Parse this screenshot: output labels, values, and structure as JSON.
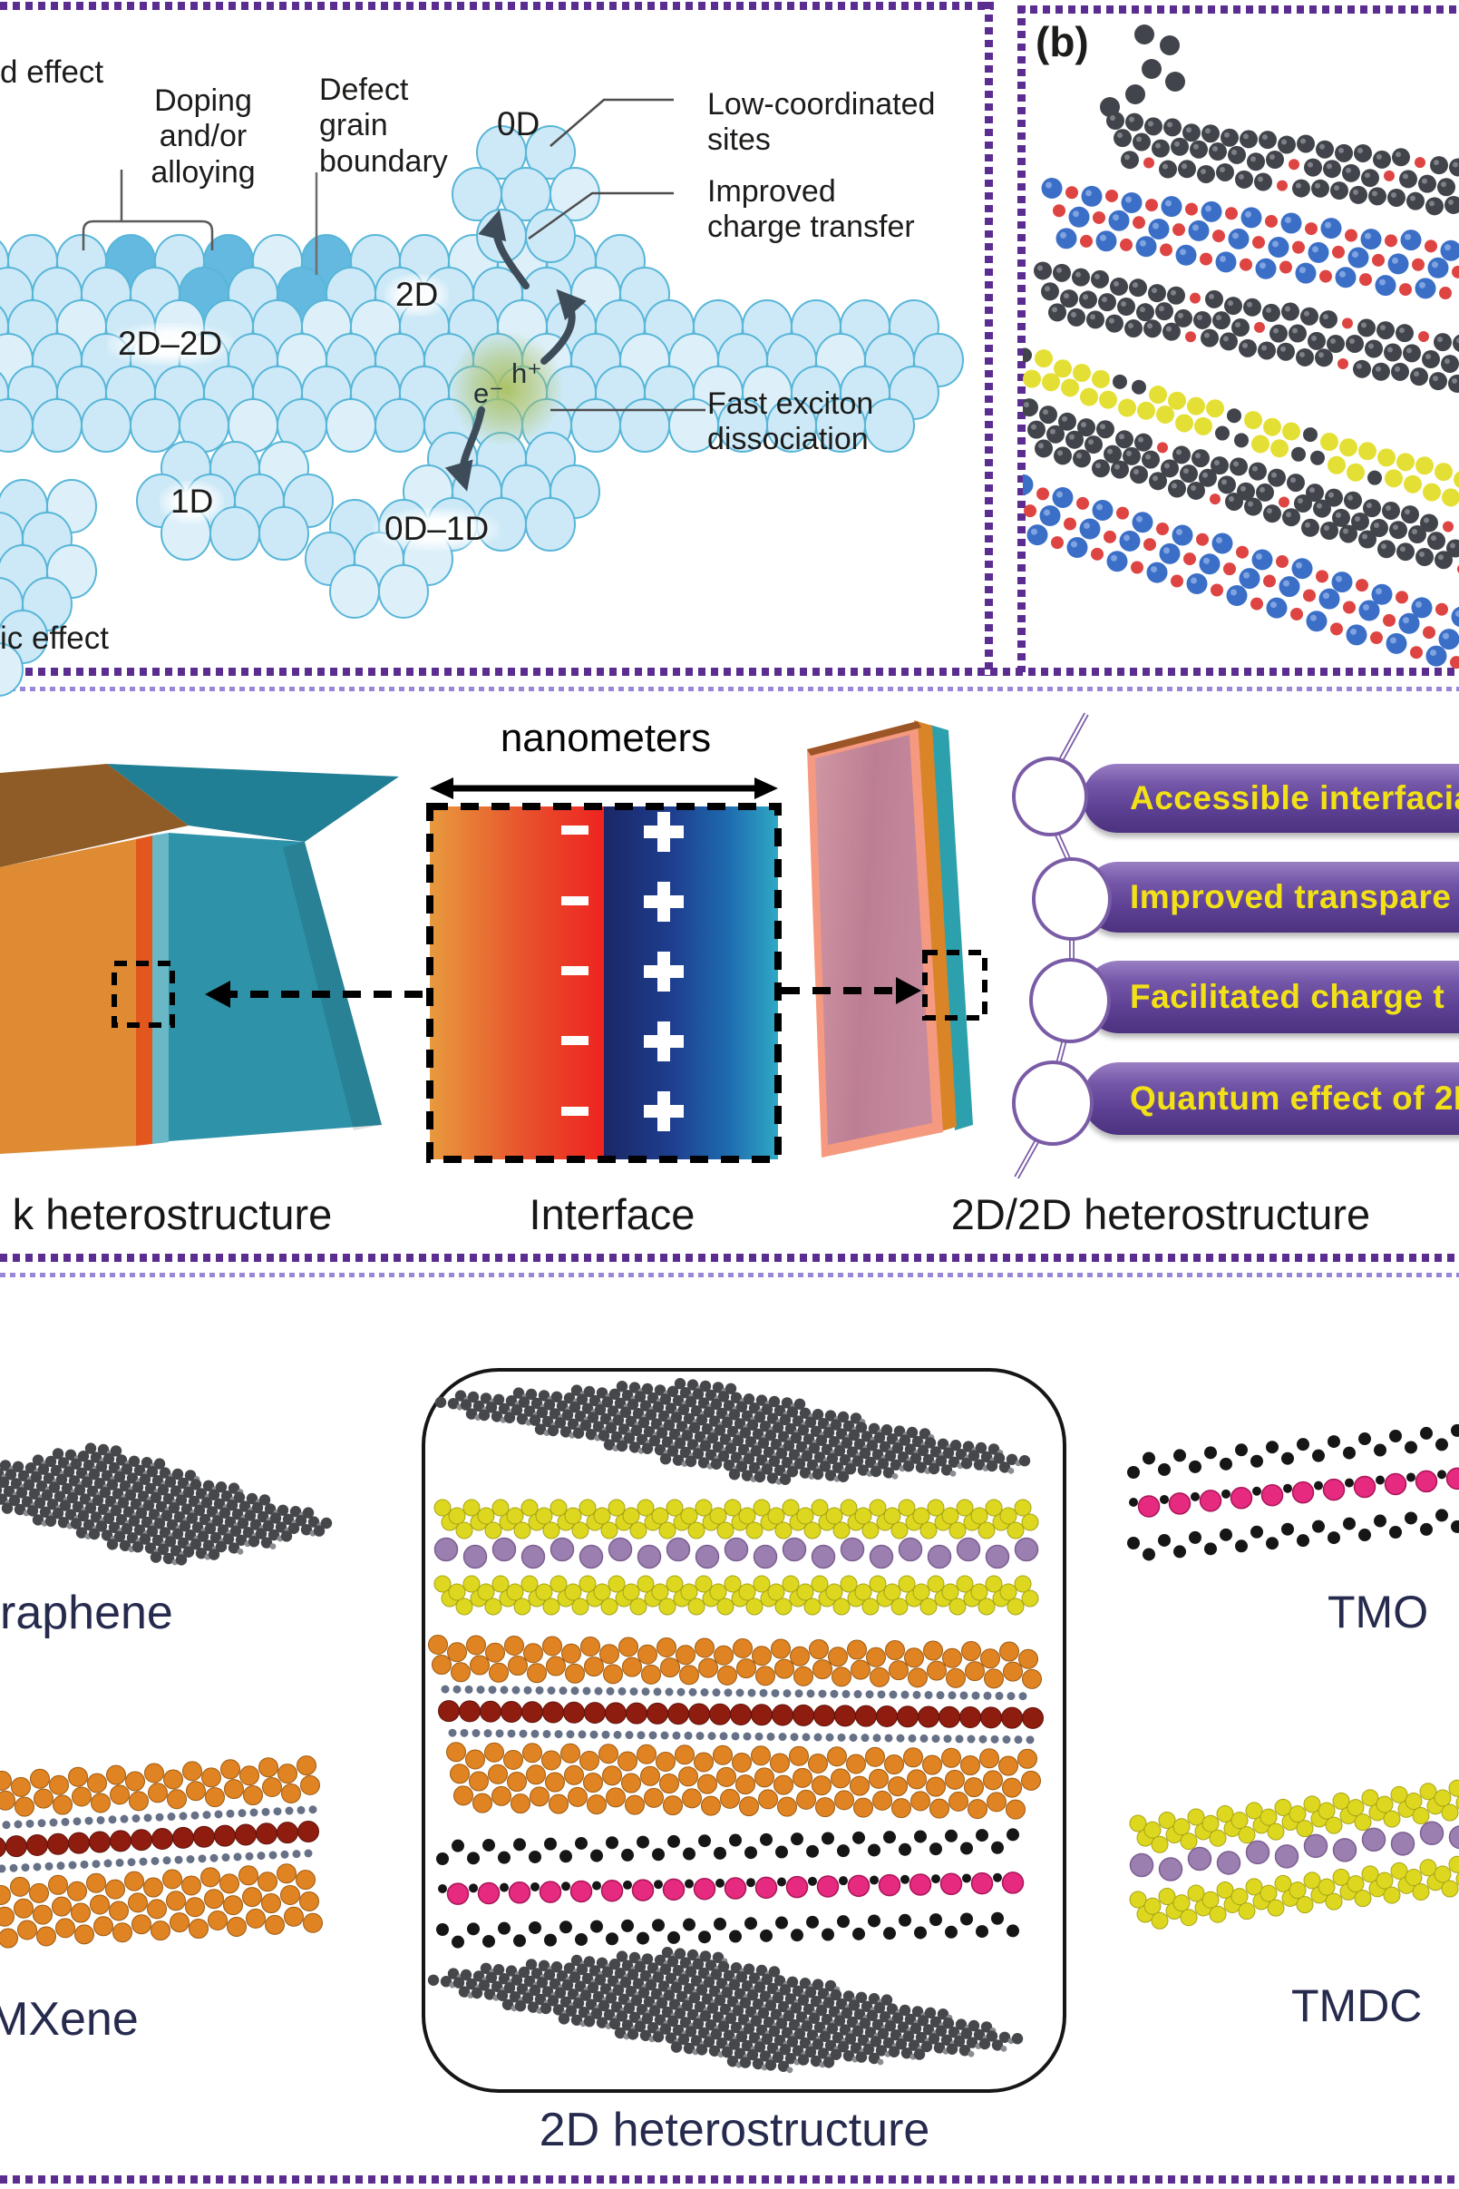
{
  "figure": {
    "panel_a": {
      "band_effect_label": "d effect",
      "doping_label": "Doping\nand/or\nalloying",
      "defect_label": "Defect\ngrain\nboundary",
      "cluster_0d_label": "0D",
      "low_coordinated_label": "Low-coordinated\nsites",
      "improved_charge_label": "Improved\ncharge transfer",
      "sheet_2d_label": "2D",
      "interface_2d2d_label": "2D–2D",
      "electron_label": "e⁻",
      "hole_label": "h⁺",
      "fast_exciton_label": "Fast exciton\ndissociation",
      "cluster_1d_label": "1D",
      "cluster_0d1d_label": "0D–1D",
      "synergistic_label": "ic effect"
    },
    "panel_b": {
      "tag": "(b)"
    },
    "interface_row": {
      "scale_label": "nanometers",
      "charge_negative": "-",
      "charge_positive": "+",
      "bulk_caption": "k heterostructure",
      "interface_caption": "Interface",
      "slab_caption": "2D/2D heterostructure",
      "benefits": [
        "Accessible interfacial",
        "Improved transpare",
        "Facilitated charge t",
        "Quantum effect of 2D"
      ]
    },
    "materials_row": {
      "graphene_label": "raphene",
      "mxene_label": "MXene",
      "heterostructure_label": "2D heterostructure",
      "tmo_label": "TMO",
      "tmdc_label": "TMDC"
    },
    "colors": {
      "border_purple": "#5c2d91",
      "border_lavender": "#9a86d6",
      "atom_fill": "#cde9f7",
      "atom_stroke": "#58b6d8",
      "atom_doped": "#64b9e0",
      "glow_green": "#a9bf5e",
      "arrow_dark": "#3e4c5a",
      "block_orange": "#de8b33",
      "block_brown": "#8f5c28",
      "block_teal": "#2e93a9",
      "block_teal_top": "#207f95",
      "strip_red": "#e2571d",
      "strip_teal": "#6ab7c5",
      "grad_orange": "#e89a3e",
      "grad_red": "#ee2420",
      "grad_navy": "#1a2766",
      "grad_blue": "#1e6cb0",
      "grad_cyan": "#2fa9c4",
      "slab_pink": "#bd7e93",
      "slab_salmon": "#f59a80",
      "slab_orange": "#d98427",
      "slab_teal": "#2da0ad",
      "banner_purple": "#5d4093",
      "banner_text_yellow": "#f2e117",
      "chain_purple": "#7a5ca6",
      "ball_dark": "#41454b",
      "ball_blue": "#3b6fc7",
      "ball_red": "#dd4442",
      "ball_yellow": "#e4df35",
      "mx_orange": "#e08322",
      "mx_darkred": "#8e1d10",
      "mx_gray": "#667086",
      "tmdc_yellow": "#ddd81f",
      "tmdc_purple": "#9b7fb0",
      "tmo_pink": "#e62a80",
      "label_navy": "#262b4e"
    }
  }
}
